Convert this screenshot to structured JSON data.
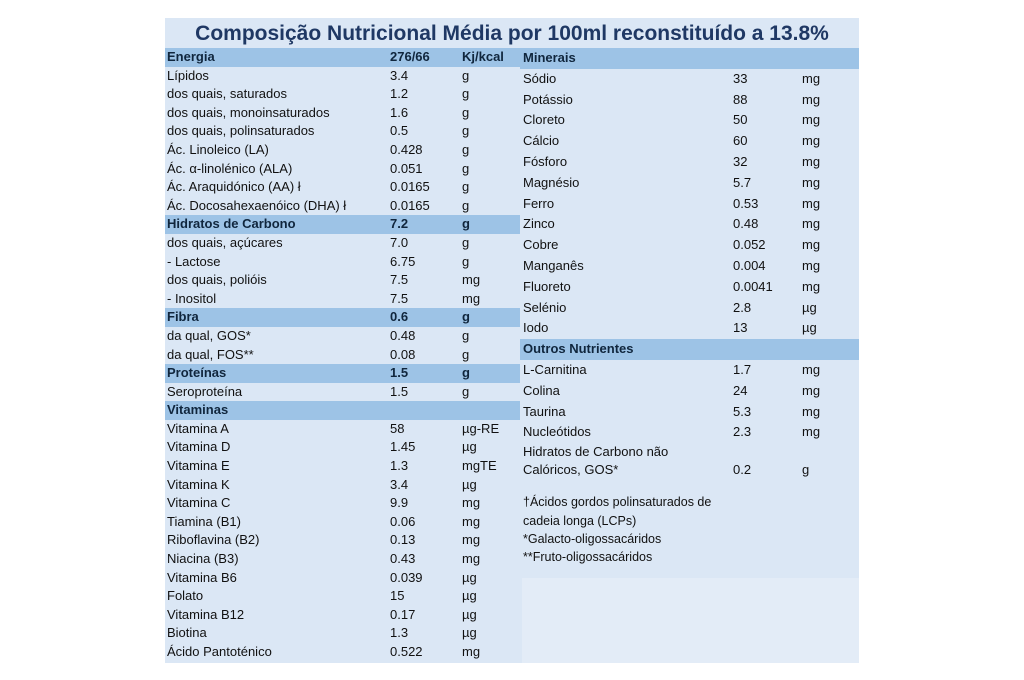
{
  "title": "Composição Nutricional Média por 100ml reconstituído a 13.8%",
  "left_rows": [
    {
      "name": "Energia",
      "value": "276/66",
      "unit": "Kj/kcal",
      "header": true
    },
    {
      "name": "Lípidos",
      "value": "3.4",
      "unit": "g"
    },
    {
      "name": "dos quais, saturados",
      "value": "1.2",
      "unit": "g"
    },
    {
      "name": "dos quais, monoinsaturados",
      "value": "1.6",
      "unit": "g"
    },
    {
      "name": "dos quais, polinsaturados",
      "value": "0.5",
      "unit": "g"
    },
    {
      "name": "Ác. Linoleico (LA)",
      "value": "0.428",
      "unit": "g"
    },
    {
      "name": "Ác. α-linolénico (ALA)",
      "value": "0.051",
      "unit": "g"
    },
    {
      "name": "Ác. Araquidónico (AA) ł",
      "value": "0.0165",
      "unit": "g"
    },
    {
      "name": "Ác. Docosahexaenóico (DHA) ł",
      "value": "0.0165",
      "unit": "g"
    },
    {
      "name": "Hidratos de Carbono",
      "value": "7.2",
      "unit": "g",
      "header": true
    },
    {
      "name": "dos quais, açúcares",
      "value": "7.0",
      "unit": "g"
    },
    {
      "name": "- Lactose",
      "value": "6.75",
      "unit": "g"
    },
    {
      "name": "dos quais, polióis",
      "value": "7.5",
      "unit": "mg"
    },
    {
      "name": "- Inositol",
      "value": "7.5",
      "unit": "mg"
    },
    {
      "name": "Fibra",
      "value": "0.6",
      "unit": "g",
      "header": true
    },
    {
      "name": "da qual, GOS*",
      "value": "0.48",
      "unit": "g"
    },
    {
      "name": "da qual, FOS**",
      "value": "0.08",
      "unit": "g"
    },
    {
      "name": "Proteínas",
      "value": "1.5",
      "unit": "g",
      "header": true
    },
    {
      "name": "Seroproteína",
      "value": "1.5",
      "unit": "g"
    },
    {
      "name": "Vitaminas",
      "value": "",
      "unit": "",
      "header": true
    },
    {
      "name": "Vitamina A",
      "value": "58",
      "unit": "µg-RE"
    },
    {
      "name": "Vitamina D",
      "value": "1.45",
      "unit": "µg"
    },
    {
      "name": "Vitamina E",
      "value": "1.3",
      "unit": "mgTE"
    },
    {
      "name": "Vitamina K",
      "value": "3.4",
      "unit": "µg"
    },
    {
      "name": "Vitamina C",
      "value": "9.9",
      "unit": "mg"
    },
    {
      "name": "Tiamina (B1)",
      "value": "0.06",
      "unit": "mg"
    },
    {
      "name": "Riboflavina (B2)",
      "value": "0.13",
      "unit": "mg"
    },
    {
      "name": "Niacina (B3)",
      "value": "0.43",
      "unit": "mg"
    },
    {
      "name": "Vitamina B6",
      "value": "0.039",
      "unit": "µg"
    },
    {
      "name": "Folato",
      "value": "15",
      "unit": "µg"
    },
    {
      "name": "Vitamina B12",
      "value": "0.17",
      "unit": "µg"
    },
    {
      "name": "Biotina",
      "value": "1.3",
      "unit": "µg"
    },
    {
      "name": "Ácido Pantoténico",
      "value": "0.522",
      "unit": "mg"
    }
  ],
  "right_rows": [
    {
      "name": "Minerais",
      "value": "",
      "unit": "",
      "header": true
    },
    {
      "name": "Sódio",
      "value": "33",
      "unit": "mg"
    },
    {
      "name": "Potássio",
      "value": "88",
      "unit": "mg"
    },
    {
      "name": "Cloreto",
      "value": "50",
      "unit": "mg"
    },
    {
      "name": "Cálcio",
      "value": "60",
      "unit": "mg"
    },
    {
      "name": "Fósforo",
      "value": "32",
      "unit": "mg"
    },
    {
      "name": "Magnésio",
      "value": "5.7",
      "unit": "mg"
    },
    {
      "name": "Ferro",
      "value": "0.53",
      "unit": "mg"
    },
    {
      "name": "Zinco",
      "value": "0.48",
      "unit": "mg"
    },
    {
      "name": "Cobre",
      "value": "0.052",
      "unit": "mg"
    },
    {
      "name": "Manganês",
      "value": "0.004",
      "unit": "mg"
    },
    {
      "name": "Fluoreto",
      "value": "0.0041",
      "unit": "mg"
    },
    {
      "name": "Selénio",
      "value": "2.8",
      "unit": "µg"
    },
    {
      "name": "Iodo",
      "value": "13",
      "unit": "µg"
    },
    {
      "name": "Outros Nutrientes",
      "value": "",
      "unit": "",
      "header": true
    },
    {
      "name": "L-Carnitina",
      "value": "1.7",
      "unit": "mg"
    },
    {
      "name": "Colina",
      "value": "24",
      "unit": "mg"
    },
    {
      "name": "Taurina",
      "value": "5.3",
      "unit": "mg"
    },
    {
      "name": "Nucleótidos",
      "value": "2.3",
      "unit": "mg"
    },
    {
      "name": "Hidratos de Carbono não Calóricos, GOS*",
      "value": "0.2",
      "unit": "g",
      "tall": true
    }
  ],
  "notes": [
    "†Ácidos gordos polinsaturados de",
    "cadeia longa (LCPs)",
    "*Galacto-oligossacáridos",
    "**Fruto-oligossacáridos"
  ]
}
